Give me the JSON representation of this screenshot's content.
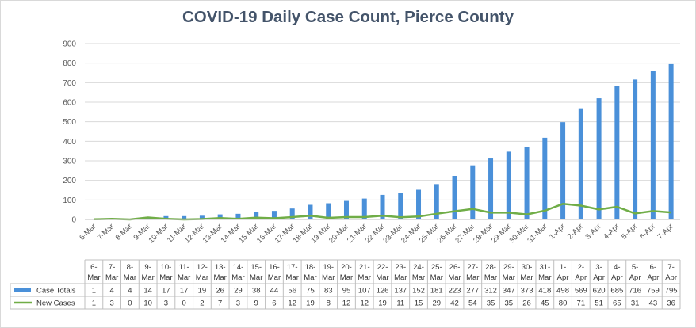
{
  "chart_data": {
    "type": "bar",
    "title": "COVID-19 Daily Case Count, Pierce County",
    "categories": [
      "6-Mar",
      "7-Mar",
      "8-Mar",
      "9-Mar",
      "10-Mar",
      "11-Mar",
      "12-Mar",
      "13-Mar",
      "14-Mar",
      "15-Mar",
      "16-Mar",
      "17-Mar",
      "18-Mar",
      "19-Mar",
      "20-Mar",
      "21-Mar",
      "22-Mar",
      "23-Mar",
      "24-Mar",
      "25-Mar",
      "26-Mar",
      "27-Mar",
      "28-Mar",
      "29-Mar",
      "30-Mar",
      "31-Mar",
      "1-Apr",
      "2-Apr",
      "3-Apr",
      "4-Apr",
      "5-Apr",
      "6-Apr",
      "7-Apr"
    ],
    "series": [
      {
        "name": "Case Totals",
        "type": "bar",
        "color": "#4a90d9",
        "values": [
          1,
          4,
          4,
          14,
          17,
          17,
          19,
          26,
          29,
          38,
          44,
          56,
          75,
          83,
          95,
          107,
          126,
          137,
          152,
          181,
          223,
          277,
          312,
          347,
          373,
          418,
          498,
          569,
          620,
          685,
          716,
          759,
          795
        ]
      },
      {
        "name": "New Cases",
        "type": "line",
        "color": "#70ad47",
        "values": [
          1,
          3,
          0,
          10,
          3,
          0,
          2,
          7,
          3,
          9,
          6,
          12,
          19,
          8,
          12,
          12,
          19,
          11,
          15,
          29,
          42,
          54,
          35,
          35,
          26,
          45,
          80,
          71,
          51,
          65,
          31,
          43,
          36
        ]
      }
    ],
    "ylim": [
      0,
      900
    ],
    "yticks": [
      0,
      100,
      200,
      300,
      400,
      500,
      600,
      700,
      800,
      900
    ],
    "grid": true,
    "data_table": true
  }
}
